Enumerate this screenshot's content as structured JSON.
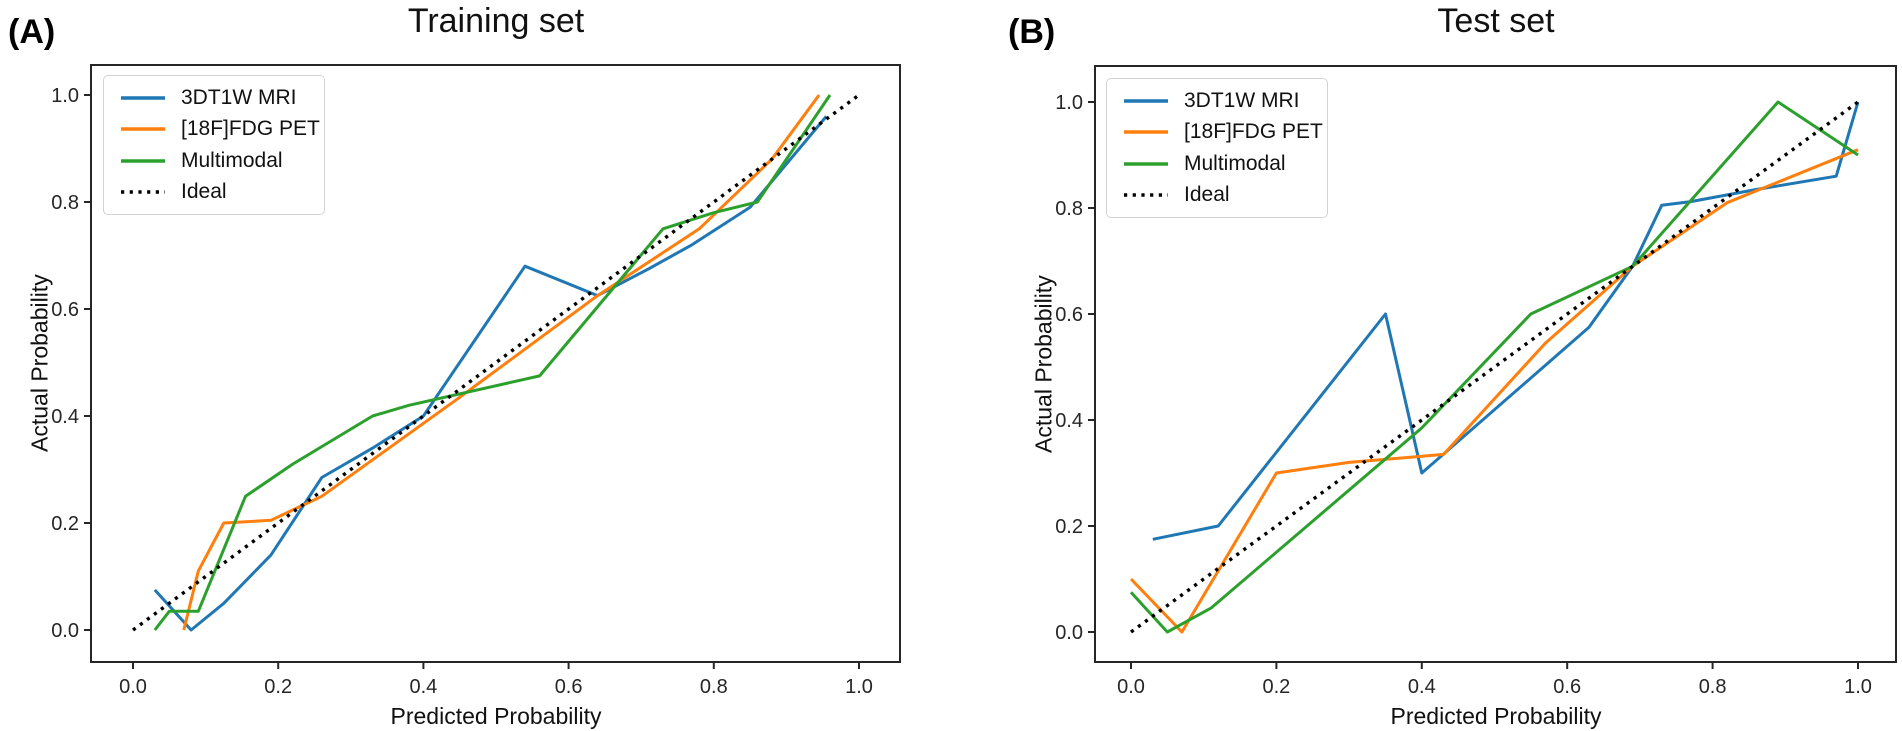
{
  "panels": [
    {
      "letter": "(A)",
      "title": "Training set",
      "xlabel": "Predicted Probability",
      "ylabel": "Actual Probability"
    },
    {
      "letter": "(B)",
      "title": "Test set",
      "xlabel": "Predicted Probability",
      "ylabel": "Actual Probability"
    }
  ],
  "colors": {
    "mri_blue": "#1f77b4",
    "pet_orange": "#ff7f0e",
    "multimodal_green": "#2ca02c",
    "ideal_black": "#000000",
    "spine": "#262626"
  },
  "chart_data": [
    {
      "type": "line",
      "title": "Training set",
      "xlabel": "Predicted Probability",
      "ylabel": "Actual Probability",
      "xlim": [
        -0.06,
        1.06
      ],
      "ylim": [
        -0.06,
        1.06
      ],
      "xticks": [
        0.0,
        0.2,
        0.4,
        0.6,
        0.8,
        1.0
      ],
      "yticks": [
        0.0,
        0.2,
        0.4,
        0.6,
        0.8,
        1.0
      ],
      "grid": false,
      "legend_position": "upper left",
      "series": [
        {
          "name": "3DT1W MRI",
          "color": "#1f77b4",
          "style": "solid",
          "points": [
            [
              0.03,
              0.075
            ],
            [
              0.08,
              0.0
            ],
            [
              0.125,
              0.05
            ],
            [
              0.19,
              0.14
            ],
            [
              0.26,
              0.285
            ],
            [
              0.33,
              0.34
            ],
            [
              0.4,
              0.4
            ],
            [
              0.54,
              0.68
            ],
            [
              0.64,
              0.625
            ],
            [
              0.71,
              0.675
            ],
            [
              0.77,
              0.72
            ],
            [
              0.85,
              0.79
            ],
            [
              0.955,
              0.96
            ]
          ]
        },
        {
          "name": "[18F]FDG PET",
          "color": "#ff7f0e",
          "style": "solid",
          "points": [
            [
              0.07,
              0.0
            ],
            [
              0.09,
              0.11
            ],
            [
              0.125,
              0.2
            ],
            [
              0.19,
              0.205
            ],
            [
              0.26,
              0.25
            ],
            [
              0.45,
              0.435
            ],
            [
              0.64,
              0.625
            ],
            [
              0.78,
              0.75
            ],
            [
              0.88,
              0.88
            ],
            [
              0.945,
              1.0
            ]
          ]
        },
        {
          "name": "Multimodal",
          "color": "#2ca02c",
          "style": "solid",
          "points": [
            [
              0.03,
              0.0
            ],
            [
              0.05,
              0.035
            ],
            [
              0.09,
              0.035
            ],
            [
              0.155,
              0.25
            ],
            [
              0.22,
              0.31
            ],
            [
              0.33,
              0.4
            ],
            [
              0.38,
              0.42
            ],
            [
              0.56,
              0.475
            ],
            [
              0.73,
              0.75
            ],
            [
              0.8,
              0.78
            ],
            [
              0.86,
              0.8
            ],
            [
              0.96,
              1.0
            ]
          ]
        },
        {
          "name": "Ideal",
          "color": "#000000",
          "style": "dotted",
          "points": [
            [
              0.0,
              0.0
            ],
            [
              1.0,
              1.0
            ]
          ]
        }
      ]
    },
    {
      "type": "line",
      "title": "Test set",
      "xlabel": "Predicted Probability",
      "ylabel": "Actual Probability",
      "xlim": [
        -0.06,
        1.06
      ],
      "ylim": [
        -0.06,
        1.06
      ],
      "xticks": [
        0.0,
        0.2,
        0.4,
        0.6,
        0.8,
        1.0
      ],
      "yticks": [
        0.0,
        0.2,
        0.4,
        0.6,
        0.8,
        1.0
      ],
      "grid": false,
      "legend_position": "upper left",
      "series": [
        {
          "name": "3DT1W MRI",
          "color": "#1f77b4",
          "style": "solid",
          "points": [
            [
              0.03,
              0.175
            ],
            [
              0.12,
              0.2
            ],
            [
              0.35,
              0.6
            ],
            [
              0.4,
              0.3
            ],
            [
              0.63,
              0.575
            ],
            [
              0.69,
              0.69
            ],
            [
              0.73,
              0.805
            ],
            [
              0.77,
              0.812
            ],
            [
              0.86,
              0.835
            ],
            [
              0.97,
              0.86
            ],
            [
              1.0,
              1.0
            ]
          ]
        },
        {
          "name": "[18F]FDG PET",
          "color": "#ff7f0e",
          "style": "solid",
          "points": [
            [
              0.0,
              0.1
            ],
            [
              0.07,
              0.0
            ],
            [
              0.2,
              0.3
            ],
            [
              0.3,
              0.32
            ],
            [
              0.43,
              0.335
            ],
            [
              0.57,
              0.545
            ],
            [
              0.69,
              0.69
            ],
            [
              0.82,
              0.81
            ],
            [
              1.0,
              0.91
            ]
          ]
        },
        {
          "name": "Multimodal",
          "color": "#2ca02c",
          "style": "solid",
          "points": [
            [
              0.0,
              0.075
            ],
            [
              0.05,
              0.0
            ],
            [
              0.11,
              0.045
            ],
            [
              0.4,
              0.385
            ],
            [
              0.55,
              0.6
            ],
            [
              0.69,
              0.69
            ],
            [
              0.89,
              1.0
            ],
            [
              1.0,
              0.9
            ]
          ]
        },
        {
          "name": "Ideal",
          "color": "#000000",
          "style": "dotted",
          "points": [
            [
              0.0,
              0.0
            ],
            [
              1.0,
              1.0
            ]
          ]
        }
      ]
    }
  ]
}
